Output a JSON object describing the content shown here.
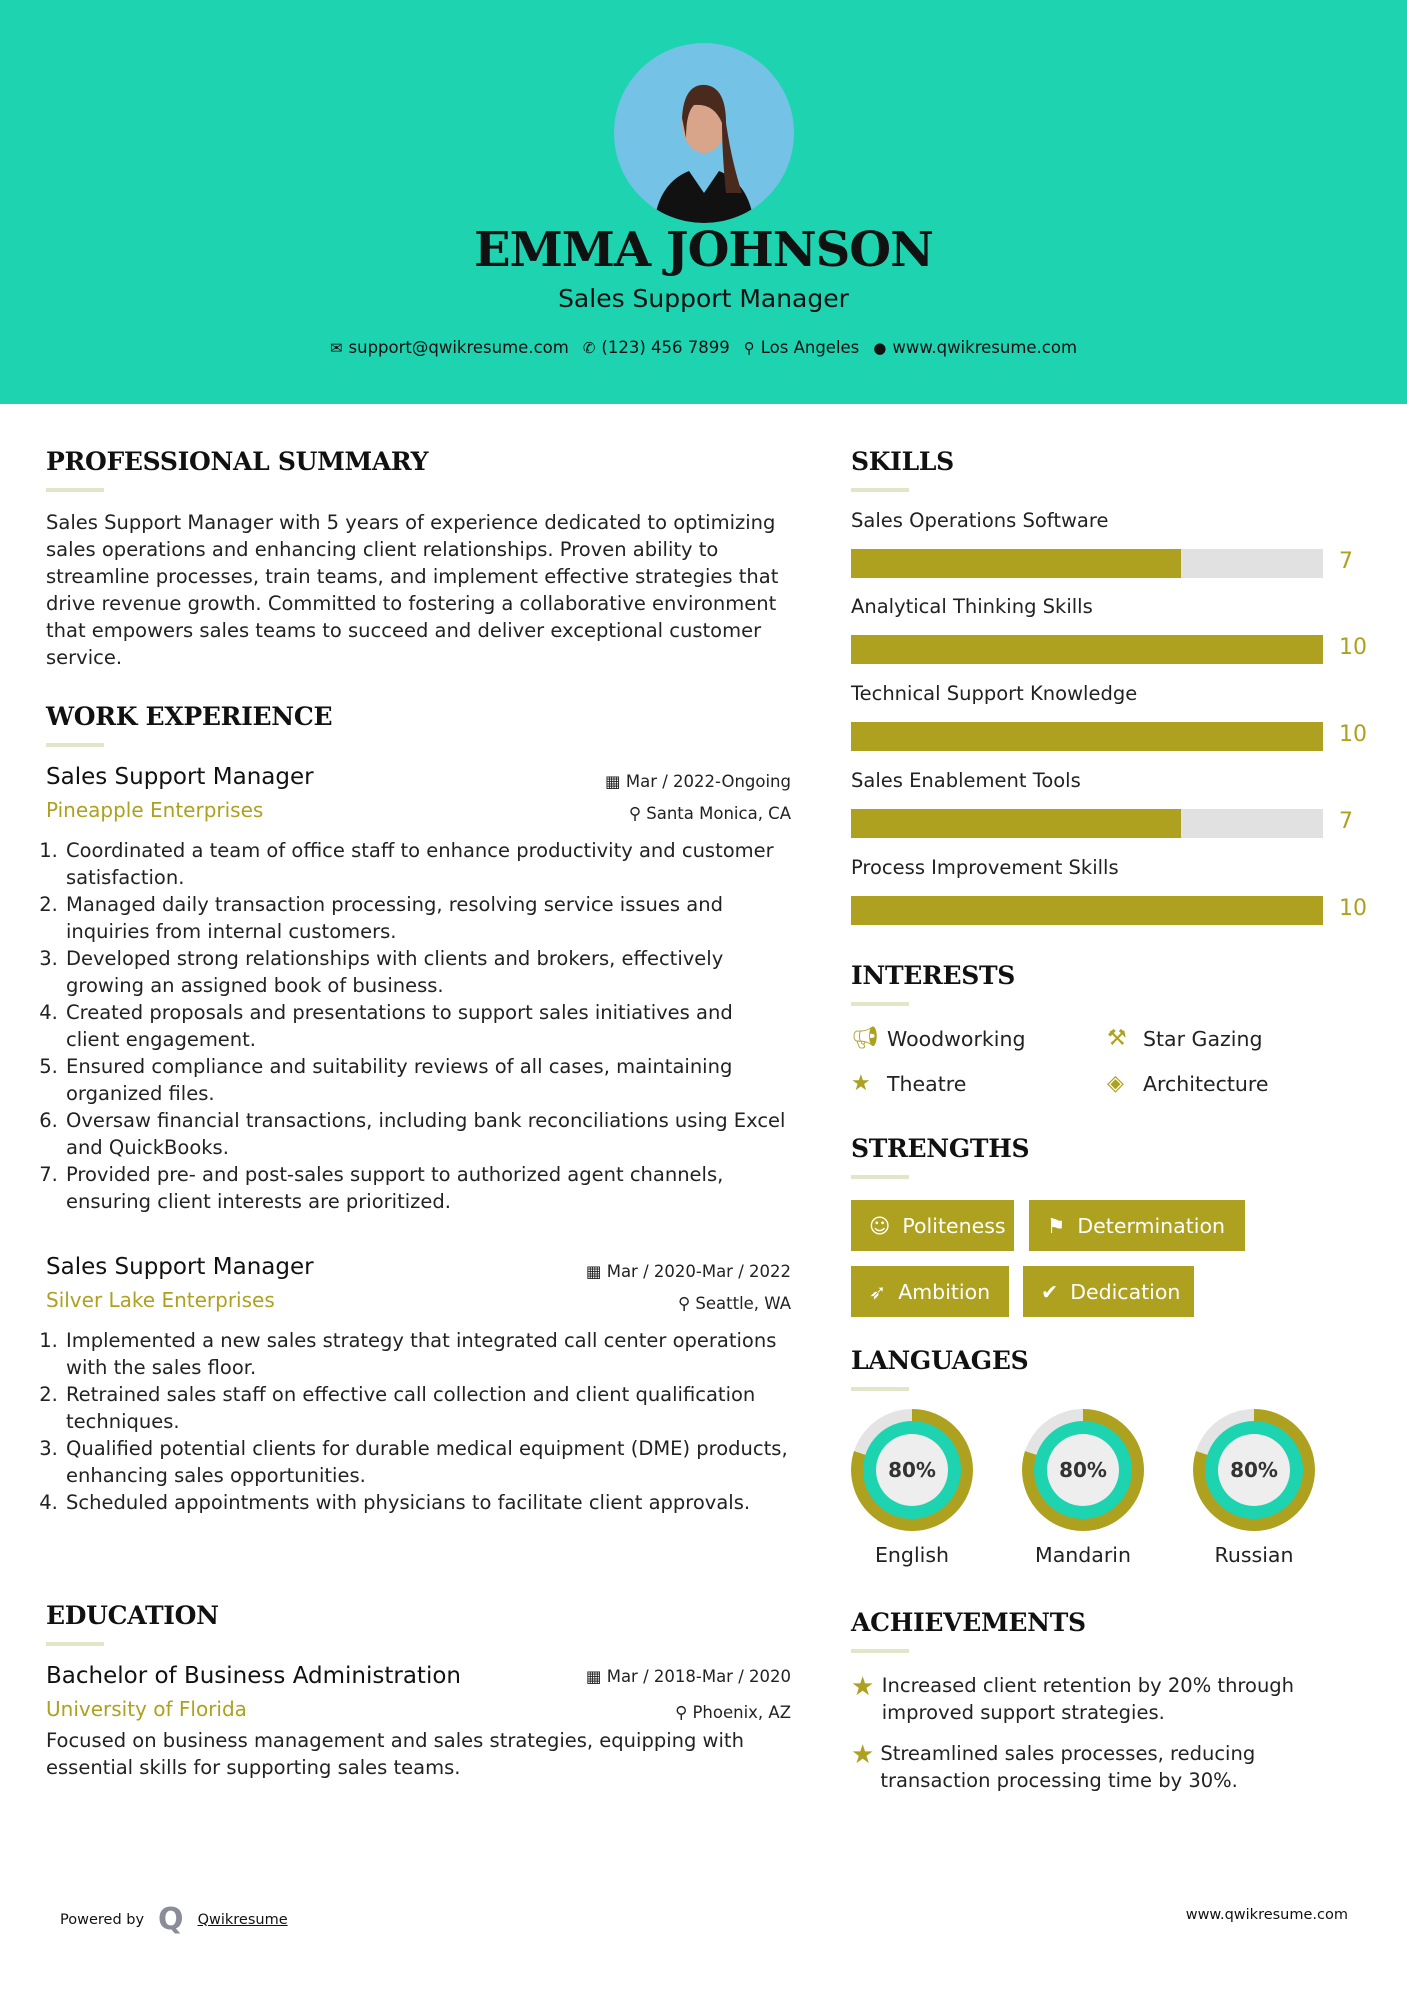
{
  "header": {
    "name": "EMMA JOHNSON",
    "title": "Sales Support Manager",
    "contacts": [
      {
        "icon": "envelope-icon",
        "text": "support@qwikresume.com"
      },
      {
        "icon": "phone-icon",
        "text": "(123) 456 7899"
      },
      {
        "icon": "map-marker-icon",
        "text": "Los Angeles"
      },
      {
        "icon": "globe-icon",
        "text": "www.qwikresume.com"
      }
    ]
  },
  "colors": {
    "header_bg": "#1dd3b0",
    "accent": "#ada11f",
    "bar_bg": "#e1e1e1"
  },
  "summary": {
    "heading": "PROFESSIONAL SUMMARY",
    "text": "Sales Support Manager with 5 years of experience dedicated to optimizing sales operations and enhancing client relationships. Proven ability to streamline processes, train teams, and implement effective strategies that drive revenue growth. Committed to fostering a collaborative environment that empowers sales teams to succeed and deliver exceptional customer service."
  },
  "experience": {
    "heading": "WORK EXPERIENCE",
    "jobs": [
      {
        "title": "Sales Support Manager",
        "company": "Pineapple Enterprises",
        "date": "Mar / 2022-Ongoing",
        "location": "Santa Monica, CA",
        "items": [
          "Coordinated a team of office staff to enhance productivity and customer satisfaction.",
          "Managed daily transaction processing, resolving service issues and inquiries from internal customers.",
          "Developed strong relationships with clients and brokers, effectively growing an assigned book of business.",
          "Created proposals and presentations to support sales initiatives and client engagement.",
          "Ensured compliance and suitability reviews of all cases, maintaining organized files.",
          "Oversaw financial transactions, including bank reconciliations using Excel and QuickBooks.",
          "Provided pre- and post-sales support to authorized agent channels, ensuring client interests are prioritized."
        ]
      },
      {
        "title": "Sales Support Manager",
        "company": "Silver Lake Enterprises",
        "date": "Mar / 2020-Mar / 2022",
        "location": "Seattle, WA",
        "items": [
          "Implemented a new sales strategy that integrated call center operations with the sales floor.",
          "Retrained sales staff on effective call collection and client qualification techniques.",
          "Qualified potential clients for durable medical equipment (DME) products, enhancing sales opportunities.",
          "Scheduled appointments with physicians to facilitate client approvals."
        ]
      }
    ]
  },
  "education": {
    "heading": "EDUCATION",
    "degree": "Bachelor of Business Administration",
    "school": "University of Florida",
    "date": "Mar / 2018-Mar / 2020",
    "location": "Phoenix, AZ",
    "text": "Focused on business management and sales strategies, equipping with essential skills for supporting sales teams."
  },
  "skills": {
    "heading": "SKILLS",
    "max": 10,
    "items": [
      {
        "label": "Sales Operations Software",
        "value": 7
      },
      {
        "label": "Analytical Thinking Skills",
        "value": 10
      },
      {
        "label": "Technical Support Knowledge",
        "value": 10
      },
      {
        "label": "Sales Enablement Tools",
        "value": 7
      },
      {
        "label": "Process Improvement Skills",
        "value": 10
      }
    ]
  },
  "interests": {
    "heading": "INTERESTS",
    "items": [
      {
        "icon": "bullhorn-icon",
        "label": "Woodworking"
      },
      {
        "icon": "gavel-icon",
        "label": "Star Gazing"
      },
      {
        "icon": "star-icon",
        "label": "Theatre"
      },
      {
        "icon": "ticket-icon",
        "label": "Architecture"
      }
    ]
  },
  "strengths": {
    "heading": "STRENGTHS",
    "items": [
      {
        "icon": "smile-icon",
        "label": "Politeness"
      },
      {
        "icon": "flag-icon",
        "label": "Determination"
      },
      {
        "icon": "rocket-icon",
        "label": "Ambition"
      },
      {
        "icon": "check-circle-icon",
        "label": "Dedication"
      }
    ]
  },
  "languages": {
    "heading": "LANGUAGES",
    "items": [
      {
        "label": "English",
        "percent": 80,
        "display": "80%"
      },
      {
        "label": "Mandarin",
        "percent": 80,
        "display": "80%"
      },
      {
        "label": "Russian",
        "percent": 80,
        "display": "80%"
      }
    ]
  },
  "achievements": {
    "heading": "ACHIEVEMENTS",
    "items": [
      "Increased client retention by 20% through improved support strategies.",
      "Streamlined sales processes, reducing transaction processing time by 30%."
    ]
  },
  "footer": {
    "powered": "Powered by",
    "brand": "Qwikresume",
    "url": "www.qwikresume.com"
  }
}
